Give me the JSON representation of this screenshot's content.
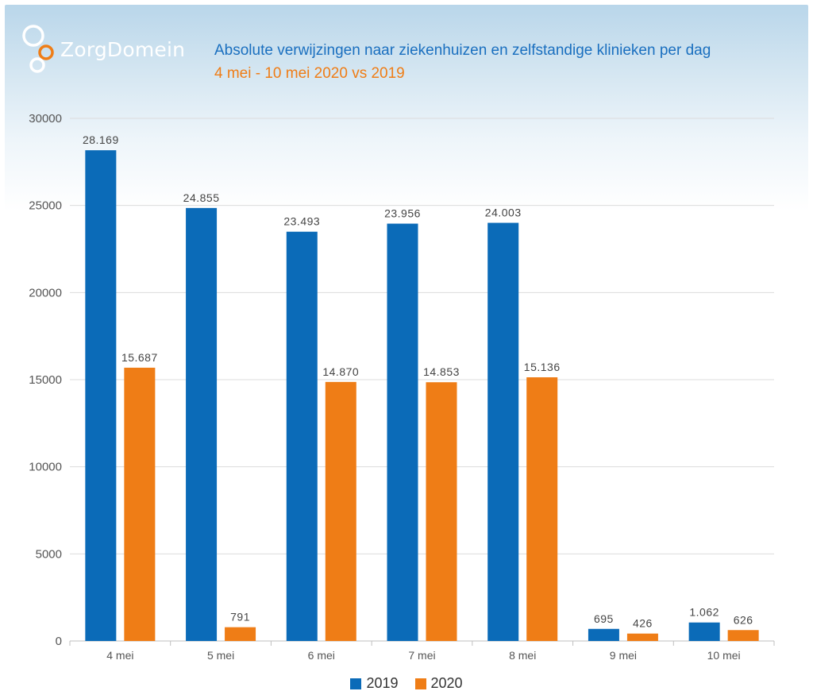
{
  "brand": {
    "name": "ZorgDomein",
    "colors": {
      "circles": "#ffffff",
      "accent_circle": "#ef7d16"
    }
  },
  "header": {
    "title": "Absolute verwijzingen naar ziekenhuizen en zelfstandige klinieken per dag",
    "subtitle": "4 mei - 10 mei 2020 vs 2019"
  },
  "colors": {
    "series_2019": "#0b6bb8",
    "series_2020": "#ef7d16",
    "title": "#1a6fbf",
    "grid": "#dcdcdc",
    "axis_text": "#555555",
    "label_text": "#444444"
  },
  "chart_data": {
    "type": "bar",
    "title": "Absolute verwijzingen naar ziekenhuizen en zelfstandige klinieken per dag",
    "subtitle": "4 mei - 10 mei 2020 vs 2019",
    "categories": [
      "4 mei",
      "5 mei",
      "6 mei",
      "7 mei",
      "8 mei",
      "9 mei",
      "10 mei"
    ],
    "series": [
      {
        "name": "2019",
        "values": [
          28169,
          24855,
          23493,
          23956,
          24003,
          695,
          1062
        ],
        "labels": [
          "28.169",
          "24.855",
          "23.493",
          "23.956",
          "24.003",
          "695",
          "1.062"
        ]
      },
      {
        "name": "2020",
        "values": [
          15687,
          791,
          14870,
          14853,
          15136,
          426,
          626
        ],
        "labels": [
          "15.687",
          "791",
          "14.870",
          "14.853",
          "15.136",
          "426",
          "626"
        ]
      }
    ],
    "ylim": [
      0,
      30000
    ],
    "yticks": [
      0,
      5000,
      10000,
      15000,
      20000,
      25000,
      30000
    ],
    "ytick_labels": [
      "0",
      "5000",
      "10000",
      "15000",
      "20000",
      "25000",
      "30000"
    ],
    "xlabel": "",
    "ylabel": "",
    "grid": true,
    "legend": "bottom-center"
  }
}
